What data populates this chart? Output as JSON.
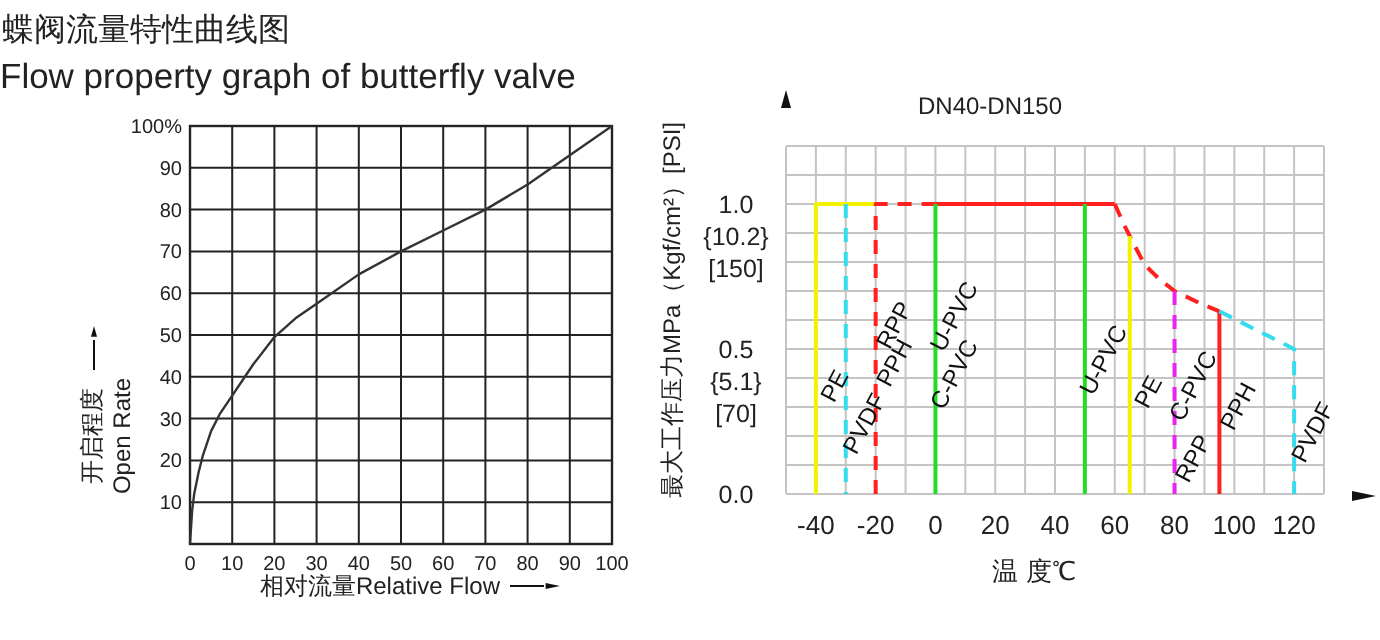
{
  "chart_data": [
    {
      "type": "line",
      "title": "蝶阀流量特性曲线图",
      "subtitle": "Flow property graph of butterfly valve",
      "xlabel": "相对流量Relative Flow",
      "ylabel": "开启程度\nOpen Rate",
      "series": [
        {
          "color": "#333333",
          "x": [
            0,
            0.5,
            1,
            2,
            3,
            5,
            7,
            10,
            15,
            20,
            25,
            30,
            40,
            50,
            60,
            70,
            80,
            90,
            100
          ],
          "values": [
            0,
            8,
            12,
            17,
            21,
            27,
            31,
            35.5,
            43,
            49.5,
            54,
            57.5,
            64.5,
            70,
            75,
            80,
            86,
            93,
            100
          ]
        }
      ],
      "xlim": [
        0,
        100
      ],
      "ylim": [
        0,
        100
      ],
      "xticks": [
        0,
        10,
        20,
        30,
        40,
        50,
        60,
        70,
        80,
        90,
        100
      ],
      "yticks": [
        10,
        20,
        30,
        40,
        50,
        60,
        70,
        80,
        90,
        {
          "value": 100,
          "label": "100%"
        }
      ],
      "grid": true
    },
    {
      "type": "line",
      "title": "DN40-DN150",
      "xlabel": "温 度℃",
      "ylabel": "最大工作压力MPa（Kgf/cm²）[PSI]",
      "series": [
        {
          "color": "#f2f200",
          "line_style": "solid",
          "x": [
            -40,
            -40,
            -20
          ],
          "values": [
            0,
            1,
            1
          ]
        },
        {
          "color": "#33ddee",
          "line_style": "dashed",
          "x": [
            -30,
            -30
          ],
          "values": [
            1,
            0
          ]
        },
        {
          "color": "#ff2020",
          "line_style": "dashed",
          "x": [
            -20,
            -20,
            0
          ],
          "values": [
            0,
            1,
            1
          ]
        },
        {
          "color": "#ff2020",
          "line_style": "solid",
          "x": [
            0,
            60
          ],
          "values": [
            1,
            1
          ]
        },
        {
          "color": "#22dd22",
          "line_style": "solid",
          "x": [
            0,
            0
          ],
          "values": [
            0,
            1
          ]
        },
        {
          "color": "#22dd22",
          "line_style": "solid",
          "x": [
            50,
            50
          ],
          "values": [
            1,
            0
          ]
        },
        {
          "color": "#ff2020",
          "line_style": "dashed",
          "x": [
            60,
            63,
            65,
            70,
            75,
            80,
            88,
            95
          ],
          "values": [
            1,
            0.93,
            0.89,
            0.79,
            0.74,
            0.7,
            0.66,
            0.63
          ]
        },
        {
          "color": "#f2f200",
          "line_style": "solid",
          "x": [
            65,
            65
          ],
          "values": [
            0.89,
            0
          ]
        },
        {
          "color": "#ee22ee",
          "line_style": "dashed",
          "x": [
            80,
            80
          ],
          "values": [
            0.7,
            0
          ]
        },
        {
          "color": "#ff2020",
          "line_style": "solid",
          "x": [
            95,
            95
          ],
          "values": [
            0.63,
            0
          ]
        },
        {
          "color": "#33ddee",
          "line_style": "dashed",
          "x": [
            95,
            120,
            120
          ],
          "values": [
            0.63,
            0.5,
            0
          ]
        }
      ],
      "annotations": [
        "{10.2}\n[150]",
        "{5.1}\n[70]",
        {
          "text": "PE",
          "x": -40,
          "y": 0.37
        },
        {
          "text": "PVDF",
          "x": -30,
          "y": 0.24
        },
        {
          "text": "PPH",
          "x": -20,
          "y": 0.45
        },
        {
          "text": "RPP",
          "x": -20,
          "y": 0.58
        },
        {
          "text": "U-PVC",
          "x": 0,
          "y": 0.61
        },
        {
          "text": "C-PVC",
          "x": 0,
          "y": 0.41
        },
        {
          "text": "U-PVC",
          "x": 50,
          "y": 0.46
        },
        {
          "text": "PE",
          "x": 65,
          "y": 0.35
        },
        {
          "text": "C-PVC",
          "x": 80,
          "y": 0.37
        },
        {
          "text": "RPP",
          "x": 80,
          "y": 0.12
        },
        {
          "text": "PPH",
          "x": 95,
          "y": 0.3
        },
        {
          "text": "PVDF",
          "x": 120,
          "y": 0.21
        }
      ],
      "xlim": [
        -50,
        130
      ],
      "ylim": [
        0,
        1.2
      ],
      "xticks": [
        {
          "value": -50,
          "label": null
        },
        -40,
        {
          "value": -30,
          "label": null
        },
        -20,
        {
          "value": -10,
          "label": null
        },
        0,
        {
          "value": 10,
          "label": null
        },
        20,
        {
          "value": 30,
          "label": null
        },
        40,
        {
          "value": 50,
          "label": null
        },
        60,
        {
          "value": 70,
          "label": null
        },
        80,
        {
          "value": 90,
          "label": null
        },
        100,
        {
          "value": 110,
          "label": null
        },
        120,
        {
          "value": 130,
          "label": null
        }
      ],
      "yticks": [
        {
          "value": 0,
          "label": "0.0"
        },
        {
          "value": 0.1,
          "label": null
        },
        {
          "value": 0.2,
          "label": null
        },
        {
          "value": 0.3,
          "label": null
        },
        {
          "value": 0.4,
          "label": null
        },
        {
          "value": 0.5,
          "label": "0.5"
        },
        {
          "value": 0.6,
          "label": null
        },
        {
          "value": 0.7,
          "label": null
        },
        {
          "value": 0.8,
          "label": null
        },
        {
          "value": 0.9,
          "label": null
        },
        {
          "value": 1,
          "label": "1.0"
        },
        {
          "value": 1.1,
          "label": null
        },
        {
          "value": 1.2,
          "label": null
        }
      ],
      "grid": true
    }
  ]
}
